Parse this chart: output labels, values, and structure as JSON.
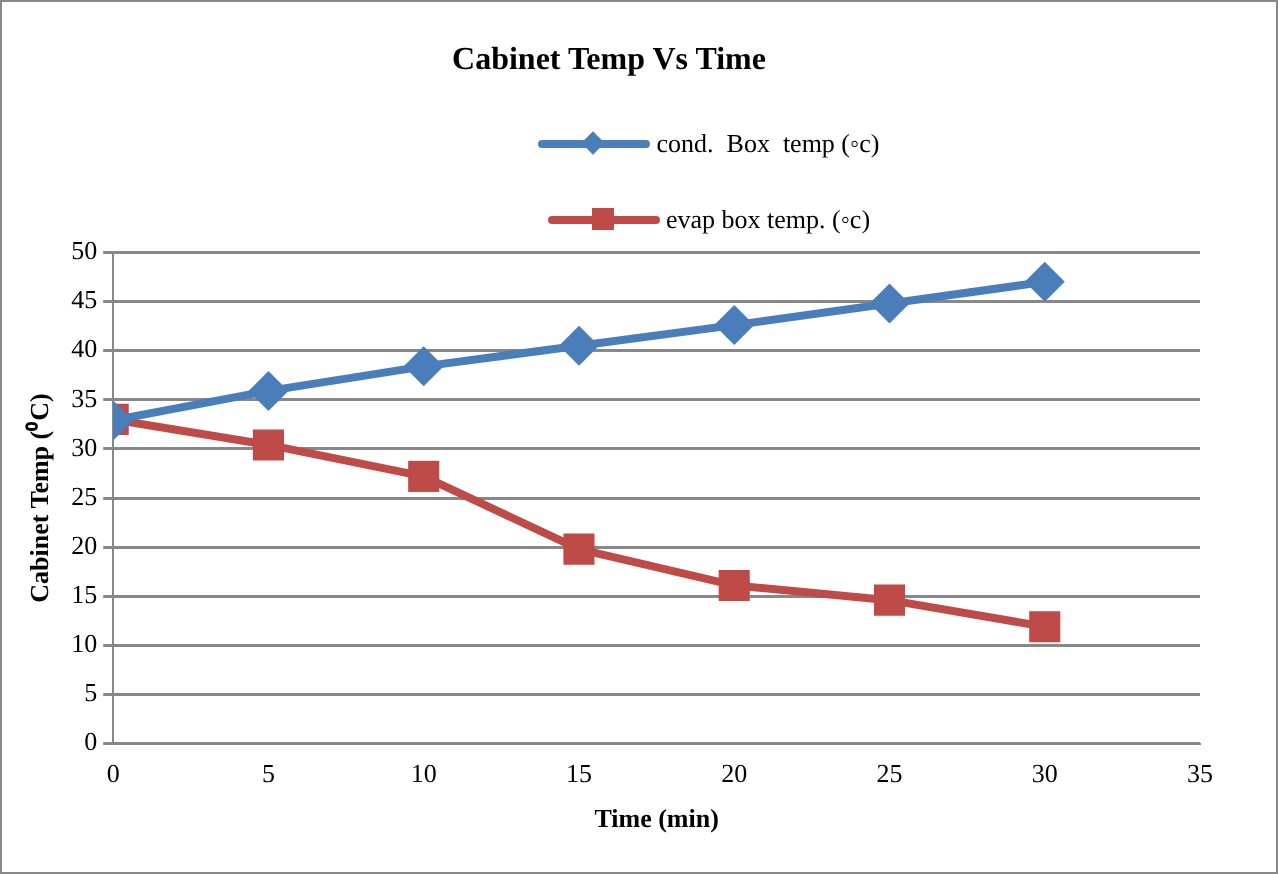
{
  "chart_data": {
    "type": "line",
    "title": "Cabinet Temp Vs Time",
    "xlabel": "Time (min)",
    "ylabel": "Cabinet Temp (⁰C)",
    "x": [
      0,
      5,
      10,
      15,
      20,
      25,
      30
    ],
    "series": [
      {
        "name": "cond.  Box  temp (◦c)",
        "color": "#4a7ebb",
        "marker": "diamond",
        "values": [
          32.9,
          35.9,
          38.4,
          40.5,
          42.6,
          44.8,
          47.0
        ]
      },
      {
        "name": "evap box temp. (◦c)",
        "color": "#be4b48",
        "marker": "square",
        "values": [
          33.0,
          30.4,
          27.2,
          19.8,
          16.1,
          14.6,
          11.9
        ]
      }
    ],
    "xlim": [
      0,
      35
    ],
    "xticks": [
      0,
      5,
      10,
      15,
      20,
      25,
      30,
      35
    ],
    "ylim": [
      0,
      50
    ],
    "yticks": [
      0,
      5,
      10,
      15,
      20,
      25,
      30,
      35,
      40,
      45,
      50
    ],
    "grid": "y",
    "legend": "top",
    "line_style": "solid"
  }
}
